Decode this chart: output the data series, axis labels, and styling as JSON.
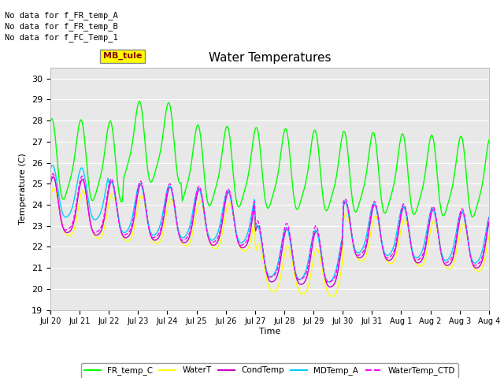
{
  "title": "Water Temperatures",
  "xlabel": "Time",
  "ylabel": "Temperature (C)",
  "ylim": [
    19.0,
    30.5
  ],
  "yticks": [
    19.0,
    20.0,
    21.0,
    22.0,
    23.0,
    24.0,
    25.0,
    26.0,
    27.0,
    28.0,
    29.0,
    30.0
  ],
  "annotations": [
    "No data for f_FR_temp_A",
    "No data for f_FR_temp_B",
    "No data for f_FC_Temp_1"
  ],
  "mb_tule_label": "MB_tule",
  "xtick_labels": [
    "Jul 20",
    "Jul 21",
    "Jul 22",
    "Jul 23",
    "Jul 24",
    "Jul 25",
    "Jul 26",
    "Jul 27",
    "Jul 28",
    "Jul 29",
    "Jul 30",
    "Jul 31",
    "Aug 1",
    "Aug 2",
    "Aug 3",
    "Aug 4"
  ],
  "fr_color": "#00ff00",
  "water_color": "#ffff00",
  "cond_color": "#cc00cc",
  "md_color": "#00ccff",
  "ctd_color": "#ff00ff",
  "num_points": 360,
  "days": 15
}
